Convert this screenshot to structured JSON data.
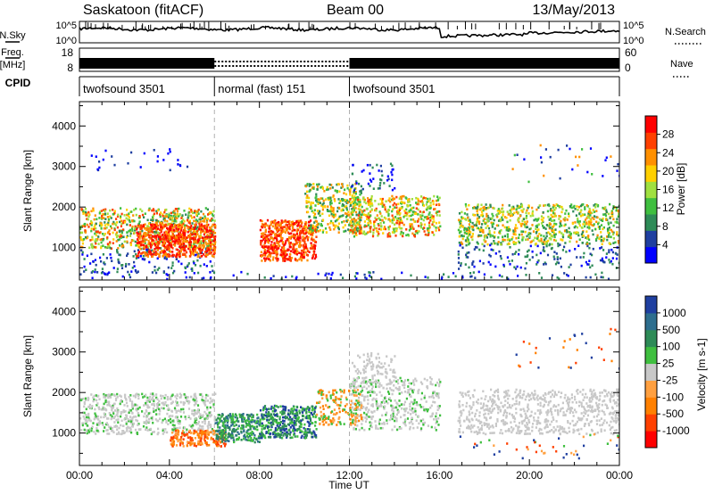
{
  "header": {
    "radar": "Saskatoon (fitACF)",
    "beam": "Beam 00",
    "date": "13/May/2013"
  },
  "strip_labels": {
    "nsky": "N.Sky",
    "freq_line1": "Freq.",
    "freq_line2": "[MHz]",
    "cpid": "CPID",
    "nsearch": "N.Search",
    "nave": "Nave"
  },
  "noise_axis": {
    "left_top": "10^5",
    "left_bottom": "10^0",
    "right_top": "10^5",
    "right_bottom": "10^0"
  },
  "freq_axis": {
    "left_ticks": [
      "18",
      "8"
    ],
    "right_ticks": [
      "60",
      "0"
    ]
  },
  "cpid_segments": [
    {
      "label": "twofsound 3501",
      "start": 0,
      "end": 6
    },
    {
      "label": "normal (fast) 151",
      "start": 6,
      "end": 12
    },
    {
      "label": "twofsound 3501",
      "start": 12,
      "end": 24
    }
  ],
  "time_axis": {
    "label": "Time UT",
    "ticks": [
      "00:00",
      "04:00",
      "08:00",
      "12:00",
      "16:00",
      "20:00",
      "00:00"
    ]
  },
  "colors": {
    "power_scale": [
      "#0000ff",
      "#1f3fa0",
      "#2e8b57",
      "#3fbf3f",
      "#a0e040",
      "#ffd000",
      "#ff9000",
      "#ff4000",
      "#ff0000"
    ],
    "velocity_scale": [
      "#1f3fa0",
      "#2e6e8e",
      "#2e8b57",
      "#3fbf3f",
      "#c8c8c8",
      "#ffa040",
      "#ff8000",
      "#ff4000",
      "#ff0000"
    ],
    "ground_scatter": "#c8c8c8"
  },
  "chart_data": [
    {
      "type": "heatmap",
      "panel": "power",
      "ylabel": "Slant Range [km]",
      "xlabel": "",
      "xlim": [
        0,
        24
      ],
      "ylim": [
        200,
        4600
      ],
      "yticks": [
        "1000",
        "2000",
        "3000",
        "4000"
      ],
      "colorbar": {
        "label": "Power [dB]",
        "ticks": [
          "4",
          "8",
          "12",
          "16",
          "20",
          "24",
          "28"
        ],
        "range": [
          0,
          30
        ]
      }
    },
    {
      "type": "heatmap",
      "panel": "velocity",
      "ylabel": "Slant Range [km]",
      "xlabel": "Time UT",
      "xlim": [
        0,
        24
      ],
      "ylim": [
        200,
        4600
      ],
      "yticks": [
        "1000",
        "2000",
        "3000",
        "4000"
      ],
      "colorbar": {
        "label": "Velocity [m s-1]",
        "ticks": [
          "1000",
          "500",
          "100",
          "25",
          "-25",
          "-100",
          "-500",
          "-1000"
        ]
      }
    }
  ]
}
